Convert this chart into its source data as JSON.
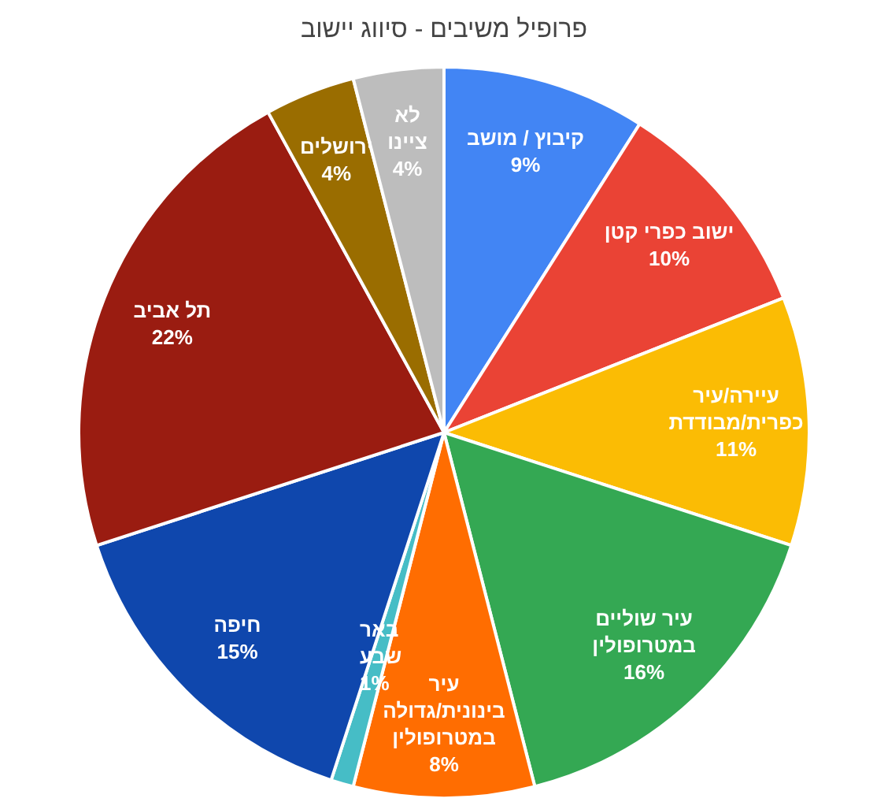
{
  "chart_data": {
    "type": "pie",
    "title": "פרופיל משיבים - סיווג יישוב",
    "categories": [
      "קיבוץ / מושב",
      "ישוב כפרי קטן",
      "עיירה/עיר\nכפרית/מבודדת",
      "עיר שוליים\nבמטרופולין",
      "עיר\nבינונית/גדולה\nבמטרופולין",
      "באר\nשבע",
      "חיפה",
      "תל אביב",
      "ירושלים",
      "לא\nציינו"
    ],
    "values": [
      9,
      10,
      11,
      16,
      8,
      1,
      15,
      22,
      4,
      4
    ],
    "value_labels": [
      "9%",
      "10%",
      "11%",
      "16%",
      "8%",
      "1%",
      "15%",
      "22%",
      "4%",
      "4%"
    ],
    "colors": [
      "#4285f4",
      "#ea4335",
      "#fbbc04",
      "#34a853",
      "#ff6d01",
      "#46bdc6",
      "#0f47ad",
      "#9a1c11",
      "#9a6d00",
      "#bdbdbd"
    ]
  }
}
